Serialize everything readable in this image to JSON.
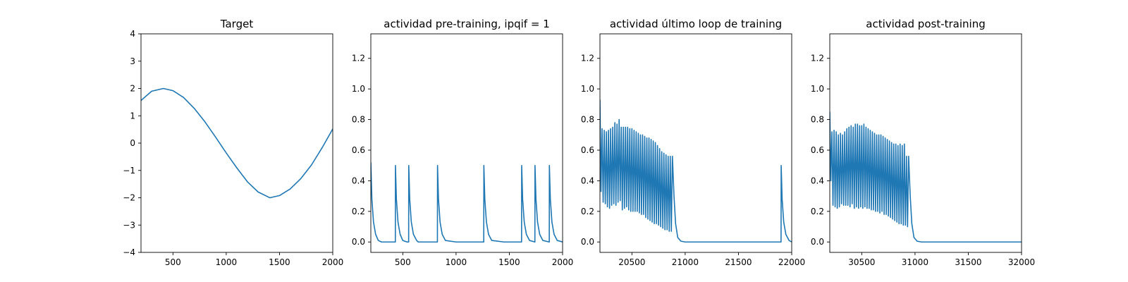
{
  "chart_data": [
    {
      "type": "line",
      "title": "Target",
      "xlim": [
        200,
        2000
      ],
      "ylim": [
        -4,
        4
      ],
      "xticks": [
        500,
        1000,
        1500,
        2000
      ],
      "xtick_labels": [
        "500",
        "1000",
        "1500",
        "2000"
      ],
      "yticks": [
        -4,
        -3,
        -2,
        -1,
        0,
        1,
        2,
        3,
        4
      ],
      "ytick_labels": [
        "−4",
        "−3",
        "−2",
        "−1",
        "0",
        "1",
        "2",
        "3",
        "4"
      ],
      "series": [
        {
          "color": "#1f77b4",
          "x": [
            200,
            300,
            410,
            500,
            600,
            700,
            800,
            900,
            1000,
            1100,
            1200,
            1300,
            1410,
            1500,
            1600,
            1700,
            1800,
            1900,
            2000
          ],
          "y": [
            1.56,
            1.9,
            2.0,
            1.92,
            1.67,
            1.27,
            0.78,
            0.22,
            -0.36,
            -0.91,
            -1.42,
            -1.79,
            -2.0,
            -1.92,
            -1.68,
            -1.3,
            -0.8,
            -0.17,
            0.52
          ]
        }
      ]
    },
    {
      "type": "line",
      "title": "actividad pre-training, ipqif = 1",
      "xlim": [
        200,
        2000
      ],
      "ylim": [
        -0.068,
        1.36
      ],
      "xticks": [
        500,
        1000,
        1500,
        2000
      ],
      "xtick_labels": [
        "500",
        "1000",
        "1500",
        "2000"
      ],
      "yticks": [
        0.0,
        0.2,
        0.4,
        0.6,
        0.8,
        1.0,
        1.2
      ],
      "ytick_labels": [
        "0.0",
        "0.2",
        "0.4",
        "0.6",
        "0.8",
        "1.0",
        "1.2"
      ],
      "series": [
        {
          "color": "#1f77b4",
          "x": [
            200,
            210,
            225,
            245,
            270,
            300,
            430,
            431,
            440,
            455,
            475,
            500,
            540,
            555,
            556,
            565,
            580,
            600,
            630,
            645,
            825,
            826,
            835,
            850,
            870,
            900,
            1000,
            1260,
            1261,
            1270,
            1285,
            1305,
            1335,
            1450,
            1615,
            1616,
            1625,
            1640,
            1660,
            1690,
            1740,
            1741,
            1750,
            1765,
            1785,
            1815,
            1875,
            1876,
            1885,
            1900,
            1920,
            1950,
            2000
          ],
          "y": [
            0.52,
            0.28,
            0.13,
            0.05,
            0.01,
            0.0,
            0.0,
            0.5,
            0.28,
            0.13,
            0.05,
            0.01,
            0.0,
            0.0,
            0.5,
            0.28,
            0.13,
            0.05,
            0.01,
            0.0,
            0.0,
            0.5,
            0.28,
            0.13,
            0.05,
            0.01,
            0.0,
            0.0,
            0.5,
            0.28,
            0.13,
            0.05,
            0.01,
            0.0,
            0.0,
            0.5,
            0.28,
            0.13,
            0.05,
            0.01,
            0.0,
            0.5,
            0.28,
            0.13,
            0.05,
            0.01,
            0.0,
            0.5,
            0.28,
            0.13,
            0.05,
            0.01,
            0.0
          ]
        }
      ]
    },
    {
      "type": "line",
      "title": "actividad último loop de training",
      "xlim": [
        20200,
        22000
      ],
      "ylim": [
        -0.068,
        1.36
      ],
      "xticks": [
        20500,
        21000,
        21500,
        22000
      ],
      "xtick_labels": [
        "20500",
        "21000",
        "21500",
        "22000"
      ],
      "yticks": [
        0.0,
        0.2,
        0.4,
        0.6,
        0.8,
        1.0,
        1.2
      ],
      "ytick_labels": [
        "0.0",
        "0.2",
        "0.4",
        "0.6",
        "0.8",
        "1.0",
        "1.2"
      ],
      "series": [
        {
          "color": "#1f77b4",
          "x": [
            20200,
            20210,
            20220,
            20230,
            20240,
            20250,
            20260,
            20270,
            20280,
            20290,
            20300,
            20310,
            20320,
            20330,
            20340,
            20350,
            20360,
            20370,
            20380,
            20390,
            20400,
            20410,
            20420,
            20430,
            20440,
            20450,
            20460,
            20470,
            20480,
            20490,
            20500,
            20510,
            20520,
            20530,
            20540,
            20550,
            20560,
            20570,
            20580,
            20590,
            20600,
            20610,
            20620,
            20630,
            20640,
            20650,
            20660,
            20670,
            20680,
            20690,
            20700,
            20710,
            20720,
            20730,
            20740,
            20750,
            20760,
            20770,
            20780,
            20790,
            20800,
            20810,
            20820,
            20830,
            20840,
            20850,
            20860,
            20870,
            20880,
            20895,
            20910,
            20930,
            20960,
            21000,
            21100,
            21300,
            21500,
            21700,
            21900,
            21901,
            21910,
            21925,
            21945,
            21975,
            22000
          ],
          "y": [
            0.93,
            0.33,
            0.74,
            0.26,
            0.73,
            0.25,
            0.72,
            0.23,
            0.73,
            0.22,
            0.74,
            0.24,
            0.75,
            0.25,
            0.78,
            0.24,
            0.77,
            0.26,
            0.8,
            0.27,
            0.75,
            0.21,
            0.75,
            0.22,
            0.75,
            0.23,
            0.75,
            0.21,
            0.74,
            0.2,
            0.74,
            0.2,
            0.73,
            0.2,
            0.72,
            0.2,
            0.71,
            0.19,
            0.7,
            0.18,
            0.7,
            0.18,
            0.69,
            0.16,
            0.68,
            0.15,
            0.68,
            0.14,
            0.67,
            0.13,
            0.66,
            0.12,
            0.65,
            0.12,
            0.63,
            0.11,
            0.61,
            0.1,
            0.59,
            0.09,
            0.58,
            0.08,
            0.57,
            0.08,
            0.56,
            0.07,
            0.56,
            0.07,
            0.56,
            0.3,
            0.12,
            0.03,
            0.005,
            0.0,
            0.0,
            0.0,
            0.0,
            0.0,
            0.0,
            0.5,
            0.28,
            0.13,
            0.05,
            0.01,
            0.0
          ]
        }
      ]
    },
    {
      "type": "line",
      "title": "actividad post-training",
      "xlim": [
        30200,
        32000
      ],
      "ylim": [
        -0.068,
        1.36
      ],
      "xticks": [
        30500,
        31000,
        31500,
        32000
      ],
      "xtick_labels": [
        "30500",
        "31000",
        "31500",
        "32000"
      ],
      "yticks": [
        0.0,
        0.2,
        0.4,
        0.6,
        0.8,
        1.0,
        1.2
      ],
      "ytick_labels": [
        "0.0",
        "0.2",
        "0.4",
        "0.6",
        "0.8",
        "1.0",
        "1.2"
      ],
      "series": [
        {
          "color": "#1f77b4",
          "x": [
            30200,
            30210,
            30220,
            30230,
            30240,
            30250,
            30260,
            30270,
            30280,
            30290,
            30300,
            30310,
            30320,
            30330,
            30340,
            30350,
            30360,
            30370,
            30380,
            30390,
            30400,
            30410,
            30420,
            30430,
            30440,
            30450,
            30460,
            30470,
            30480,
            30490,
            30500,
            30510,
            30520,
            30530,
            30540,
            30550,
            30560,
            30570,
            30580,
            30590,
            30600,
            30610,
            30620,
            30630,
            30640,
            30650,
            30660,
            30670,
            30680,
            30690,
            30700,
            30710,
            30720,
            30730,
            30740,
            30750,
            30760,
            30770,
            30780,
            30790,
            30800,
            30810,
            30820,
            30830,
            30840,
            30850,
            30860,
            30870,
            30880,
            30890,
            30900,
            30910,
            30920,
            30930,
            30940,
            30955,
            30970,
            30990,
            31020,
            31060,
            31200,
            31500,
            31800,
            32000
          ],
          "y": [
            0.85,
            0.4,
            0.72,
            0.24,
            0.73,
            0.23,
            0.72,
            0.22,
            0.7,
            0.23,
            0.71,
            0.25,
            0.7,
            0.24,
            0.72,
            0.24,
            0.74,
            0.24,
            0.75,
            0.23,
            0.76,
            0.25,
            0.75,
            0.22,
            0.77,
            0.23,
            0.77,
            0.22,
            0.76,
            0.23,
            0.76,
            0.22,
            0.77,
            0.23,
            0.75,
            0.22,
            0.74,
            0.22,
            0.73,
            0.21,
            0.72,
            0.21,
            0.71,
            0.2,
            0.7,
            0.2,
            0.7,
            0.19,
            0.7,
            0.2,
            0.69,
            0.18,
            0.68,
            0.18,
            0.67,
            0.17,
            0.66,
            0.16,
            0.65,
            0.15,
            0.64,
            0.14,
            0.64,
            0.13,
            0.63,
            0.12,
            0.64,
            0.12,
            0.63,
            0.11,
            0.64,
            0.11,
            0.56,
            0.1,
            0.56,
            0.3,
            0.12,
            0.03,
            0.005,
            0.0,
            0.0,
            0.0,
            0.0,
            0.0
          ]
        }
      ]
    }
  ]
}
